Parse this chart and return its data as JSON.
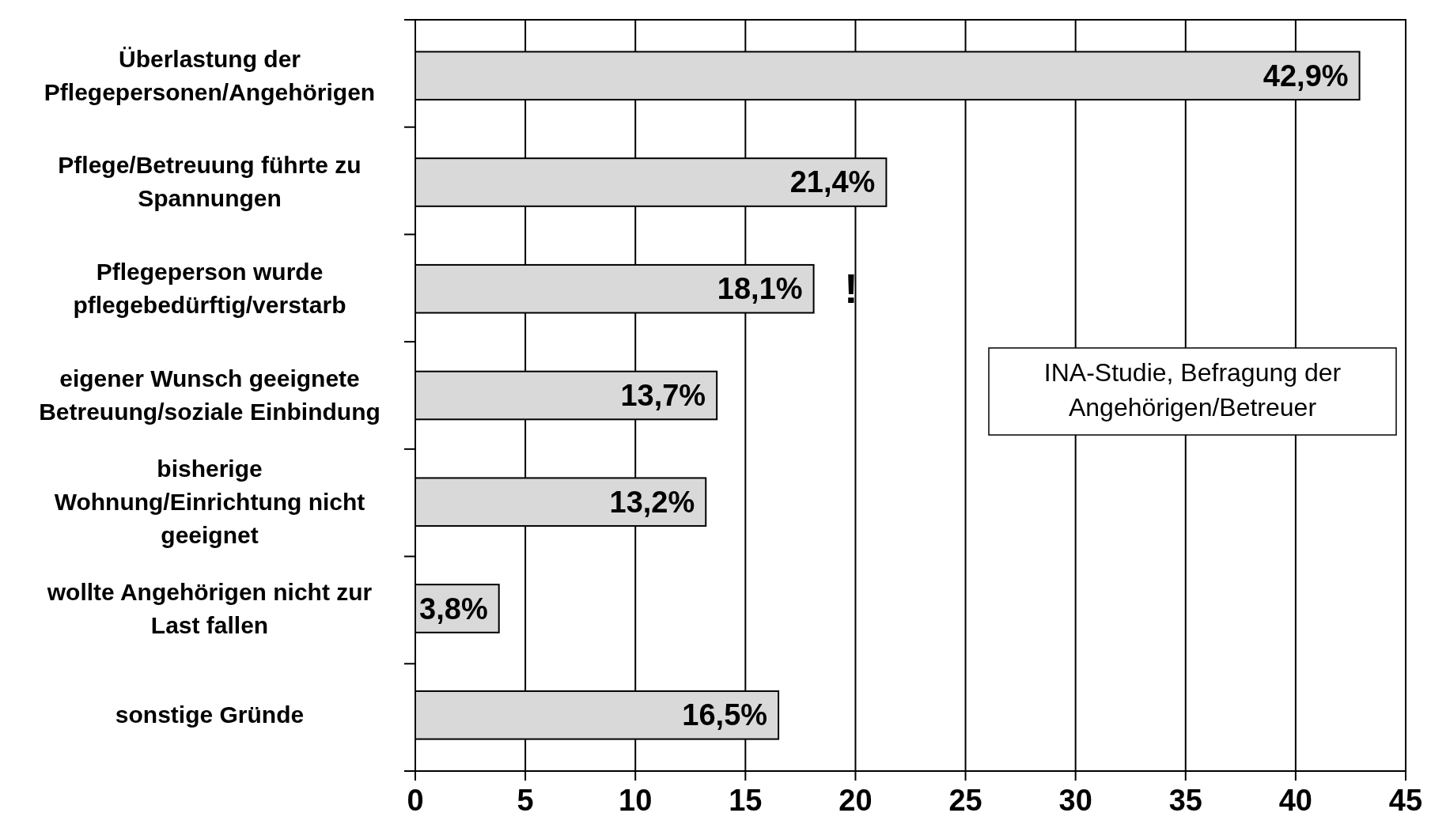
{
  "chart_data": {
    "type": "bar",
    "orientation": "horizontal",
    "categories": [
      "Überlastung der Pflegepersonen/Angehörigen",
      "Pflege/Betreuung führte zu Spannungen",
      "Pflegeperson wurde pflegebedürftig/verstarb",
      "eigener Wunsch geeignete Betreuung/soziale Einbindung",
      "bisherige Wohnung/Einrichtung nicht geeignet",
      "wollte Angehörigen nicht zur Last fallen",
      "sonstige Gründe"
    ],
    "values": [
      42.9,
      21.4,
      18.1,
      13.7,
      13.2,
      3.8,
      16.5
    ],
    "value_labels": [
      "42,9%",
      "21,4%",
      "18,1%",
      "13,7%",
      "13,2%",
      "3,8%",
      "16,5%"
    ],
    "color": "#d9d9d9",
    "xlim": [
      0,
      45
    ],
    "xticks": [
      0,
      5,
      10,
      15,
      20,
      25,
      30,
      35,
      40,
      45
    ],
    "grid": "x",
    "annotations": [
      "!",
      "INA-Studie, Befragung der Angehörigen/Betreuer"
    ]
  }
}
